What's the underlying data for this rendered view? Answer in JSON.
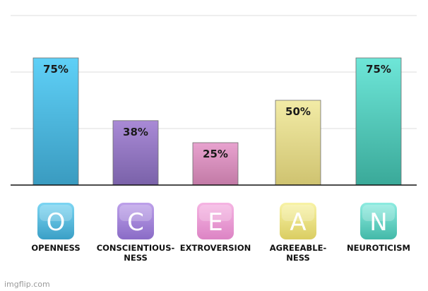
{
  "chart_data": {
    "type": "bar",
    "categories": [
      {
        "letter": "O",
        "name_lines": [
          "OPENNESS"
        ]
      },
      {
        "letter": "C",
        "name_lines": [
          "CONSCIENTIOUS-",
          "NESS"
        ]
      },
      {
        "letter": "E",
        "name_lines": [
          "EXTROVERSION"
        ]
      },
      {
        "letter": "A",
        "name_lines": [
          "AGREEABLE-",
          "NESS"
        ]
      },
      {
        "letter": "N",
        "name_lines": [
          "NEUROTICISM"
        ]
      }
    ],
    "values": [
      75,
      38,
      25,
      50,
      75
    ],
    "value_labels": [
      "75%",
      "38%",
      "25%",
      "50%",
      "75%"
    ],
    "ylim": [
      0,
      100
    ],
    "grid": true,
    "bar_colors": [
      [
        "#5fd0f7",
        "#3a9bc0"
      ],
      [
        "#a98ad6",
        "#7a62a9"
      ],
      [
        "#e8a2cf",
        "#c27aa6"
      ],
      [
        "#f2eba6",
        "#cfc370"
      ],
      [
        "#6ee6d8",
        "#3aa999"
      ]
    ],
    "tile_colors": [
      [
        "#7dd6f3",
        "#3a9fc6"
      ],
      [
        "#bea1ea",
        "#8a6bc6"
      ],
      [
        "#f6b5e3",
        "#dc84c4"
      ],
      [
        "#f8f3a6",
        "#dacd62"
      ],
      [
        "#8eece1",
        "#43b9a8"
      ]
    ]
  },
  "watermark": "imgflip.com"
}
